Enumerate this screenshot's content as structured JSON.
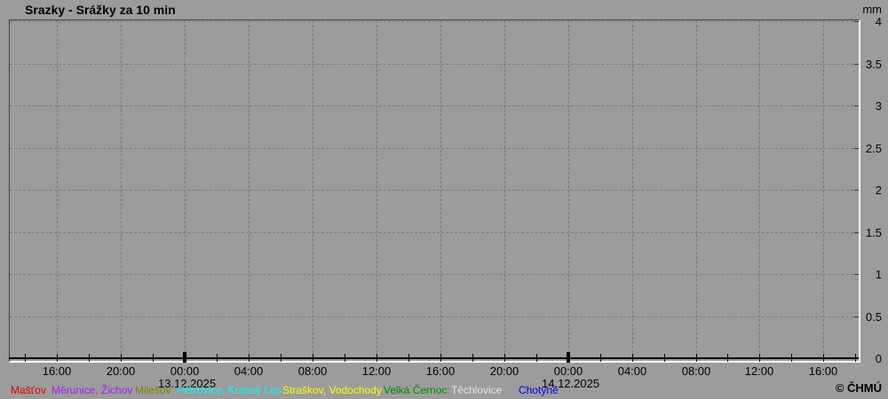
{
  "window": {
    "title": "Srazky - Srážky za 10 min",
    "unit": "mm",
    "copyright": "© ČHMÚ"
  },
  "chart_data": {
    "type": "line",
    "title": "Srazky - Srážky za 10 min",
    "ylabel": "mm",
    "ylim": [
      0,
      4
    ],
    "y_ticks": [
      4,
      3.5,
      3,
      2.5,
      2,
      1.5,
      1,
      0.5,
      0
    ],
    "grid": "dashed",
    "legend_position": "bottom",
    "x_axis": {
      "start_hour": 13.0,
      "end_hour": 66.2,
      "minor_tick_step_hours": 2,
      "labels": [
        {
          "hour": 16,
          "label": "16:00"
        },
        {
          "hour": 20,
          "label": "20:00"
        },
        {
          "hour": 24,
          "label": "00:00",
          "emphasis": true
        },
        {
          "hour": 28,
          "label": "04:00"
        },
        {
          "hour": 32,
          "label": "08:00"
        },
        {
          "hour": 36,
          "label": "12:00"
        },
        {
          "hour": 40,
          "label": "16:00"
        },
        {
          "hour": 44,
          "label": "20:00"
        },
        {
          "hour": 48,
          "label": "00:00",
          "emphasis": true
        },
        {
          "hour": 52,
          "label": "04:00"
        },
        {
          "hour": 56,
          "label": "08:00"
        },
        {
          "hour": 60,
          "label": "12:00"
        },
        {
          "hour": 64,
          "label": "16:00"
        }
      ],
      "date_labels": [
        {
          "hour": 24,
          "label": "13.12.2025"
        },
        {
          "hour": 48,
          "label": "14.12.2025"
        }
      ]
    },
    "series": [
      {
        "name": "Mašťov",
        "color": "#dd0000",
        "values": []
      },
      {
        "name": "Měrunice, Žichov",
        "color": "#a020f0",
        "values": []
      },
      {
        "name": "Milešov",
        "color": "#808000",
        "values": []
      },
      {
        "name": "Petrovice, Krásný Les",
        "color": "#00ffff",
        "values": []
      },
      {
        "name": "Straškov, Vodochody",
        "color": "#ffff00",
        "values": []
      },
      {
        "name": "Velká Černoc",
        "color": "#008a00",
        "values": []
      },
      {
        "name": "Těchlovice",
        "color": "#e6e6e6",
        "values": []
      },
      {
        "name": "Chotyně",
        "color": "#0000ff",
        "values": []
      }
    ],
    "values_note": "No precipitation visible in the plot; all station series are flat at 0 mm over the displayed period."
  }
}
